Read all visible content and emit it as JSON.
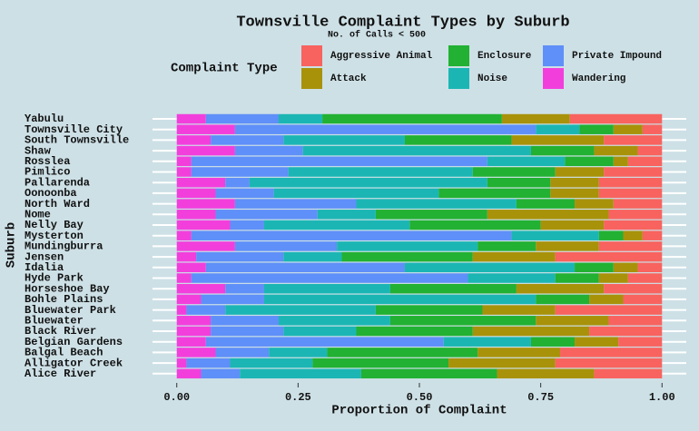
{
  "chart_data": {
    "type": "stacked_bar_horizontal",
    "title": "Townsville Complaint Types by Suburb",
    "subtitle": "No. of Calls < 500",
    "legend_title": "Complaint Type",
    "xlabel": "Proportion of Complaint",
    "ylabel": "Suburb",
    "categories": [
      "Yabulu",
      "Townsville City",
      "South Townsville",
      "Shaw",
      "Rosslea",
      "Pimlico",
      "Pallarenda",
      "Oonoonba",
      "North Ward",
      "Nome",
      "Nelly Bay",
      "Mysterton",
      "Mundingburra",
      "Jensen",
      "Idalia",
      "Hyde Park",
      "Horseshoe Bay",
      "Bohle Plains",
      "Bluewater Park",
      "Bluewater",
      "Black River",
      "Belgian Gardens",
      "Balgal Beach",
      "Alligator Creek",
      "Alice River"
    ],
    "series": [
      {
        "name": "Aggressive Animal",
        "color": "#f8635f",
        "values": [
          0.19,
          0.04,
          0.12,
          0.05,
          0.07,
          0.12,
          0.13,
          0.13,
          0.1,
          0.11,
          0.12,
          0.04,
          0.13,
          0.22,
          0.05,
          0.07,
          0.12,
          0.08,
          0.22,
          0.11,
          0.15,
          0.09,
          0.21,
          0.22,
          0.14
        ]
      },
      {
        "name": "Attack",
        "color": "#a8920a",
        "values": [
          0.14,
          0.06,
          0.19,
          0.09,
          0.03,
          0.1,
          0.1,
          0.1,
          0.08,
          0.25,
          0.13,
          0.04,
          0.13,
          0.17,
          0.05,
          0.06,
          0.18,
          0.07,
          0.15,
          0.15,
          0.24,
          0.09,
          0.17,
          0.22,
          0.2
        ]
      },
      {
        "name": "Enclosure",
        "color": "#22b132",
        "values": [
          0.37,
          0.07,
          0.22,
          0.13,
          0.1,
          0.17,
          0.13,
          0.23,
          0.12,
          0.23,
          0.27,
          0.05,
          0.12,
          0.27,
          0.08,
          0.09,
          0.26,
          0.11,
          0.22,
          0.3,
          0.24,
          0.09,
          0.31,
          0.28,
          0.28
        ]
      },
      {
        "name": "Noise",
        "color": "#1bb6b4",
        "values": [
          0.09,
          0.09,
          0.25,
          0.47,
          0.16,
          0.38,
          0.49,
          0.34,
          0.33,
          0.12,
          0.3,
          0.18,
          0.29,
          0.12,
          0.35,
          0.18,
          0.26,
          0.56,
          0.31,
          0.23,
          0.15,
          0.18,
          0.12,
          0.17,
          0.25
        ]
      },
      {
        "name": "Private Impound",
        "color": "#5f8ff8",
        "values": [
          0.15,
          0.62,
          0.15,
          0.14,
          0.61,
          0.2,
          0.05,
          0.12,
          0.25,
          0.21,
          0.07,
          0.66,
          0.21,
          0.18,
          0.41,
          0.57,
          0.08,
          0.13,
          0.08,
          0.14,
          0.15,
          0.49,
          0.11,
          0.09,
          0.08
        ]
      },
      {
        "name": "Wandering",
        "color": "#f23fdc",
        "values": [
          0.06,
          0.12,
          0.07,
          0.12,
          0.03,
          0.03,
          0.1,
          0.08,
          0.12,
          0.08,
          0.11,
          0.03,
          0.12,
          0.04,
          0.06,
          0.03,
          0.1,
          0.05,
          0.02,
          0.07,
          0.07,
          0.06,
          0.08,
          0.02,
          0.05
        ]
      }
    ],
    "xlim": [
      -0.05,
      1.05
    ],
    "xticks": [
      {
        "value": 0,
        "label": "0.00"
      },
      0.25,
      {
        "value": 0.5,
        "label": "0.50"
      },
      0.75,
      {
        "value": 1,
        "label": "1.00"
      }
    ],
    "grid": true
  }
}
